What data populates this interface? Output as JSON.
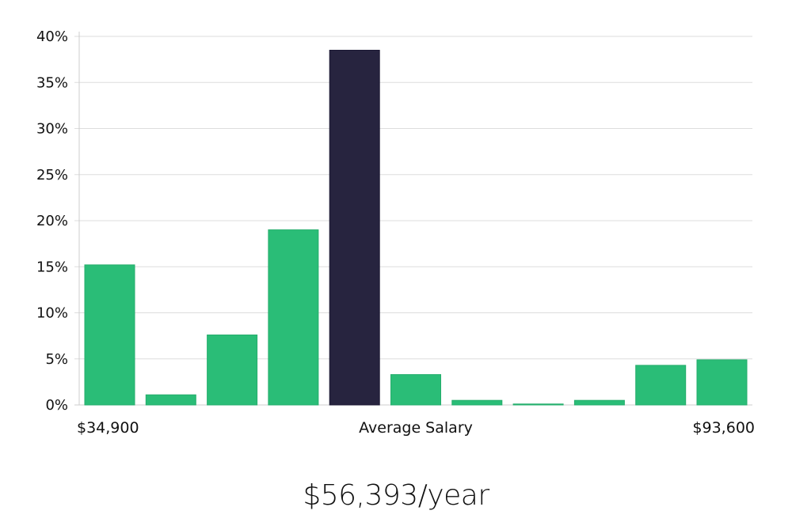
{
  "colors": {
    "bar": "#2ABD77",
    "highlight": "#27243F",
    "grid": "#DDDDDD",
    "axis": "#CCCCCC",
    "text": "#111111"
  },
  "summary": {
    "salary_text": "$56,393/year"
  },
  "chart_data": {
    "type": "bar",
    "title": "",
    "xlabel": "",
    "ylabel": "",
    "ylim": [
      0,
      40
    ],
    "yticks": [
      0,
      5,
      10,
      15,
      20,
      25,
      30,
      35,
      40
    ],
    "ytick_labels": [
      "0%",
      "5%",
      "10%",
      "15%",
      "20%",
      "25%",
      "30%",
      "35%",
      "40%"
    ],
    "x_labels": {
      "left": "$34,900",
      "center": "Average Salary",
      "right": "$93,600"
    },
    "values": [
      15.2,
      1.1,
      7.6,
      19.0,
      38.5,
      3.3,
      0.5,
      0.1,
      0.5,
      4.3,
      4.9
    ],
    "highlight_index": 4,
    "grid": true
  }
}
